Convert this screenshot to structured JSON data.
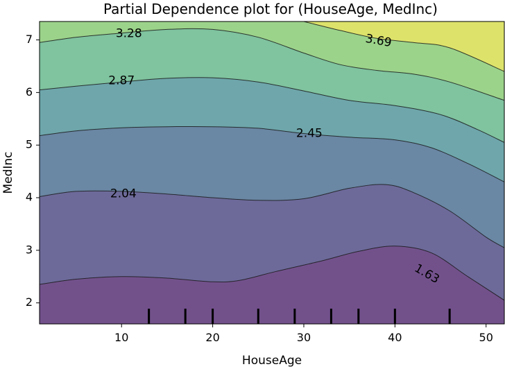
{
  "chart_data": {
    "type": "contour",
    "title": "Partial Dependence plot for (HouseAge, MedInc)",
    "xlabel": "HouseAge",
    "ylabel": "MedInc",
    "xlim": [
      1.0,
      52.0
    ],
    "ylim": [
      1.6,
      7.35
    ],
    "xticks": [
      10,
      20,
      30,
      40,
      50
    ],
    "yticks": [
      2,
      3,
      4,
      5,
      6,
      7
    ],
    "levels": [
      {
        "value": "1.63",
        "label_at": [
          43.5,
          2.55
        ],
        "label_rotation": 30
      },
      {
        "value": "2.04",
        "label_at": [
          10.2,
          4.07
        ],
        "label_rotation": 0
      },
      {
        "value": "2.45",
        "label_at": [
          30.6,
          5.22
        ],
        "label_rotation": 0
      },
      {
        "value": "2.87",
        "label_at": [
          10.0,
          6.22
        ],
        "label_rotation": 0
      },
      {
        "value": "3.28",
        "label_at": [
          10.8,
          7.12
        ],
        "label_rotation": 0
      },
      {
        "value": "3.69",
        "label_at": [
          38.2,
          6.98
        ],
        "label_rotation": 10
      }
    ],
    "contour_lines": [
      {
        "level": "1.63",
        "points": [
          [
            1,
            2.35
          ],
          [
            5,
            2.45
          ],
          [
            10,
            2.5
          ],
          [
            15,
            2.47
          ],
          [
            20,
            2.4
          ],
          [
            23,
            2.43
          ],
          [
            27,
            2.6
          ],
          [
            32,
            2.8
          ],
          [
            36,
            2.98
          ],
          [
            40,
            3.08
          ],
          [
            44,
            2.95
          ],
          [
            48,
            2.5
          ],
          [
            52,
            2.05
          ]
        ]
      },
      {
        "level": "2.04",
        "points": [
          [
            1,
            4.02
          ],
          [
            5,
            4.12
          ],
          [
            10,
            4.12
          ],
          [
            15,
            4.07
          ],
          [
            20,
            4.0
          ],
          [
            25,
            3.95
          ],
          [
            30,
            3.98
          ],
          [
            35,
            4.18
          ],
          [
            39,
            4.25
          ],
          [
            42,
            4.1
          ],
          [
            46,
            3.75
          ],
          [
            50,
            3.25
          ],
          [
            52,
            3.05
          ]
        ]
      },
      {
        "level": "2.45",
        "points": [
          [
            1,
            5.18
          ],
          [
            5,
            5.27
          ],
          [
            10,
            5.33
          ],
          [
            15,
            5.35
          ],
          [
            20,
            5.35
          ],
          [
            25,
            5.32
          ],
          [
            30,
            5.22
          ],
          [
            35,
            5.15
          ],
          [
            40,
            5.1
          ],
          [
            44,
            4.95
          ],
          [
            48,
            4.65
          ],
          [
            52,
            4.3
          ]
        ]
      },
      {
        "level": "2.87",
        "points": [
          [
            1,
            6.05
          ],
          [
            5,
            6.12
          ],
          [
            10,
            6.2
          ],
          [
            15,
            6.27
          ],
          [
            20,
            6.28
          ],
          [
            25,
            6.2
          ],
          [
            30,
            6.03
          ],
          [
            35,
            5.85
          ],
          [
            40,
            5.75
          ],
          [
            45,
            5.58
          ],
          [
            49,
            5.3
          ],
          [
            52,
            5.05
          ]
        ]
      },
      {
        "level": "3.28",
        "points": [
          [
            1,
            6.95
          ],
          [
            5,
            7.05
          ],
          [
            10,
            7.13
          ],
          [
            15,
            7.2
          ],
          [
            20,
            7.2
          ],
          [
            25,
            7.05
          ],
          [
            30,
            6.75
          ],
          [
            34,
            6.53
          ],
          [
            38,
            6.42
          ],
          [
            42,
            6.35
          ],
          [
            46,
            6.2
          ],
          [
            52,
            5.85
          ]
        ]
      },
      {
        "level": "3.69",
        "points": [
          [
            30,
            7.35
          ],
          [
            34,
            7.18
          ],
          [
            38,
            7.03
          ],
          [
            42,
            6.95
          ],
          [
            46,
            6.85
          ],
          [
            52,
            6.4
          ]
        ]
      }
    ],
    "fill_bands": [
      {
        "range": "< 1.63",
        "color": "#72518b"
      },
      {
        "range": "1.63 - 2.04",
        "color": "#6d6a9a"
      },
      {
        "range": "2.04 - 2.45",
        "color": "#6a87a4"
      },
      {
        "range": "2.45 - 2.87",
        "color": "#6ea6ab"
      },
      {
        "range": "2.87 - 3.28",
        "color": "#7fc39f"
      },
      {
        "range": "3.28 - 3.69",
        "color": "#9bd38a"
      },
      {
        "range": "> 3.69",
        "color": "#dde36a"
      }
    ],
    "x_deciles": [
      13,
      17,
      20,
      25,
      29,
      33,
      36,
      40,
      46
    ],
    "grid": false,
    "legend": "none"
  }
}
